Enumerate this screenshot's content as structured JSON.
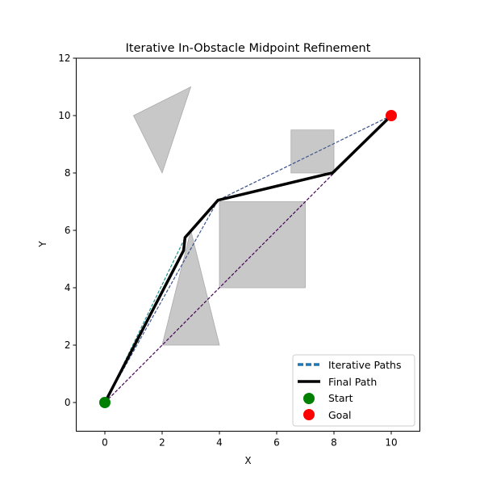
{
  "chart_data": {
    "type": "line",
    "title": "Iterative In-Obstacle Midpoint Refinement",
    "xlabel": "X",
    "ylabel": "Y",
    "xlim": [
      -1,
      11
    ],
    "ylim": [
      -1,
      12
    ],
    "xticks": [
      0,
      2,
      4,
      6,
      8,
      10
    ],
    "yticks": [
      0,
      2,
      4,
      6,
      8,
      10,
      12
    ],
    "grid": false,
    "legend_position": "bottom-right",
    "obstacles": [
      {
        "shape": "polygon",
        "points": [
          [
            1,
            10
          ],
          [
            3,
            11
          ],
          [
            2,
            8
          ]
        ]
      },
      {
        "shape": "polygon",
        "points": [
          [
            6.5,
            8
          ],
          [
            8,
            8
          ],
          [
            8,
            9.5
          ],
          [
            6.5,
            9.5
          ]
        ]
      },
      {
        "shape": "polygon",
        "points": [
          [
            4,
            4
          ],
          [
            7,
            4
          ],
          [
            7,
            7
          ],
          [
            4,
            7
          ]
        ]
      },
      {
        "shape": "polygon",
        "points": [
          [
            2,
            2
          ],
          [
            4,
            2
          ],
          [
            3,
            6
          ]
        ]
      }
    ],
    "obstacle_color": "#c8c8c8",
    "iterative_paths": [
      {
        "color": "#440154",
        "points": [
          [
            0,
            0
          ],
          [
            10,
            10
          ]
        ]
      },
      {
        "color": "#3b528b",
        "points": [
          [
            0,
            0
          ],
          [
            3.95,
            7.05
          ],
          [
            10,
            10
          ]
        ]
      },
      {
        "color": "#21918c",
        "points": [
          [
            0,
            0
          ],
          [
            2.8,
            5.75
          ],
          [
            3.95,
            7.05
          ],
          [
            7.95,
            8.0
          ],
          [
            10,
            10
          ]
        ]
      }
    ],
    "final_path": {
      "color": "#000000",
      "points": [
        [
          0,
          0
        ],
        [
          2.75,
          5.3
        ],
        [
          2.8,
          5.75
        ],
        [
          3.95,
          7.05
        ],
        [
          7.7,
          7.95
        ],
        [
          7.95,
          8.0
        ],
        [
          10,
          10
        ]
      ]
    },
    "start": {
      "point": [
        0,
        0
      ],
      "color": "#008000"
    },
    "goal": {
      "point": [
        10,
        10
      ],
      "color": "#ff0000"
    },
    "legend": [
      "Iterative Paths",
      "Final Path",
      "Start",
      "Goal"
    ],
    "legend_colors": {
      "iterative": "#1f77b4"
    }
  }
}
